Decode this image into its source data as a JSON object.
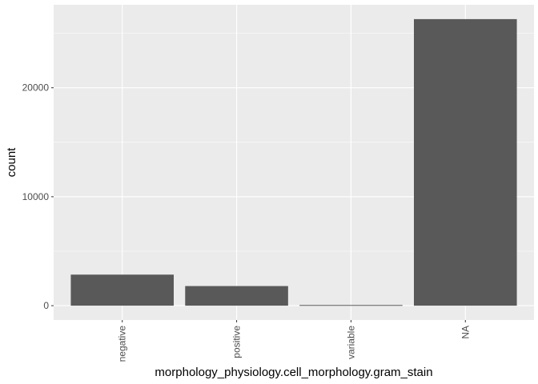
{
  "chart_data": {
    "type": "bar",
    "categories": [
      "negative",
      "positive",
      "variable",
      "NA"
    ],
    "values": [
      2850,
      1800,
      60,
      26300
    ],
    "xlabel": "morphology_physiology.cell_morphology.gram_stain",
    "ylabel": "count",
    "ylim": [
      -1315,
      27615
    ],
    "yticks": [
      0,
      10000,
      20000
    ],
    "ytick_labels": [
      "0",
      "10000",
      "20000"
    ],
    "grid": true,
    "colors": {
      "panel_background": "#ebebeb",
      "grid_major": "#ffffff",
      "bar_fill": "#595959",
      "tick_mark": "#333333"
    }
  }
}
